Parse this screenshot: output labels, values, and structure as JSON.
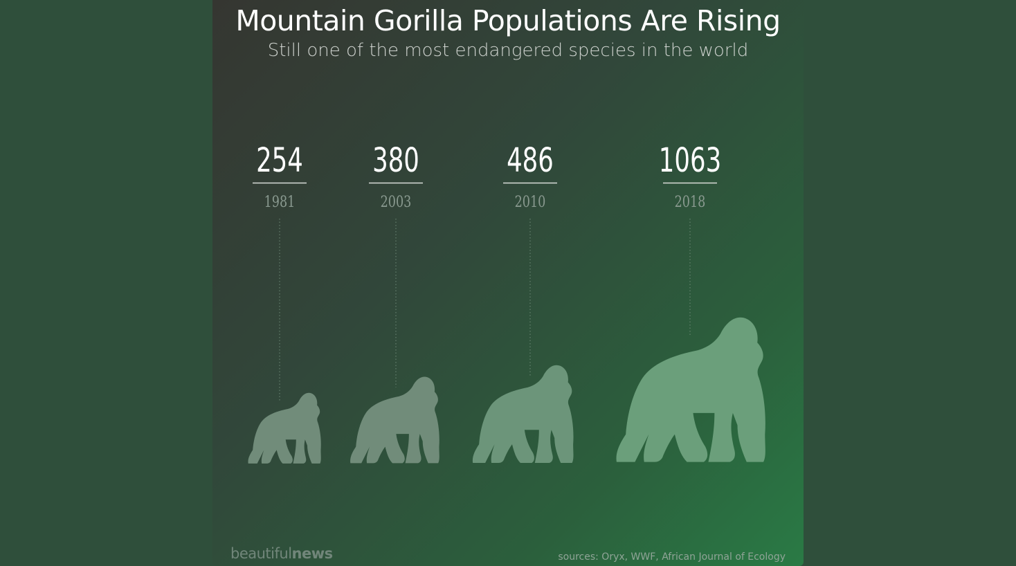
{
  "title": "Mountain Gorilla Populations Are Rising",
  "subtitle": "Still one of the most endangered species in the world",
  "logo": {
    "light": "beautiful",
    "bold": "news"
  },
  "sources": "sources: Oryx, WWF, African Journal of Ecology",
  "colors": {
    "value_text": "#ffffff",
    "year_text": "#8a9a90",
    "gorilla_fills": [
      "#718c7a",
      "#718c7a",
      "#6c957a",
      "#6b9f7b"
    ],
    "leader_line": "#6f8a78"
  },
  "chart_data": {
    "type": "pictograph",
    "categories": [
      "1981",
      "2003",
      "2010",
      "2018"
    ],
    "values": [
      254,
      380,
      486,
      1063
    ],
    "value_labels": [
      "254",
      "380",
      "486",
      "1063"
    ],
    "icon": "gorilla-silhouette-icon"
  }
}
